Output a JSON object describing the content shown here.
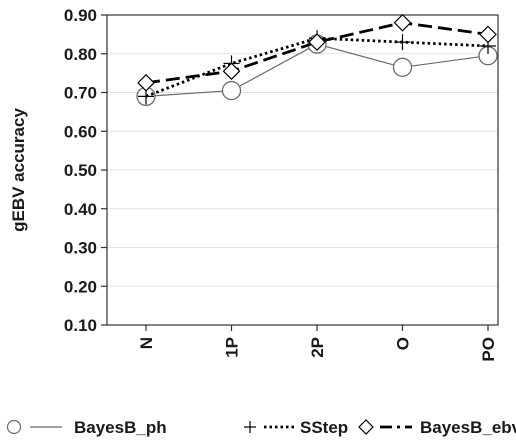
{
  "chart_data": {
    "type": "line",
    "title": "",
    "xlabel": "",
    "ylabel": "gEBV accuracy",
    "categories": [
      "N",
      "1P",
      "2P",
      "O",
      "PO"
    ],
    "ylim": [
      0.1,
      0.9
    ],
    "yticks": [
      "0.10",
      "0.20",
      "0.30",
      "0.40",
      "0.50",
      "0.60",
      "0.70",
      "0.80",
      "0.90"
    ],
    "grid": "horizontal",
    "legend_position": "bottom",
    "series": [
      {
        "name": "BayesB_ph",
        "values": [
          0.69,
          0.705,
          0.825,
          0.765,
          0.795
        ],
        "marker": "circle",
        "line": "solid",
        "color": "#6b6b6b"
      },
      {
        "name": "SStep",
        "values": [
          0.69,
          0.775,
          0.84,
          0.83,
          0.82
        ],
        "marker": "plus",
        "line": "dotted",
        "color": "#000000"
      },
      {
        "name": "BayesB_ebv",
        "values": [
          0.725,
          0.755,
          0.83,
          0.88,
          0.85
        ],
        "marker": "diamond",
        "line": "dashed",
        "color": "#000000"
      }
    ]
  }
}
